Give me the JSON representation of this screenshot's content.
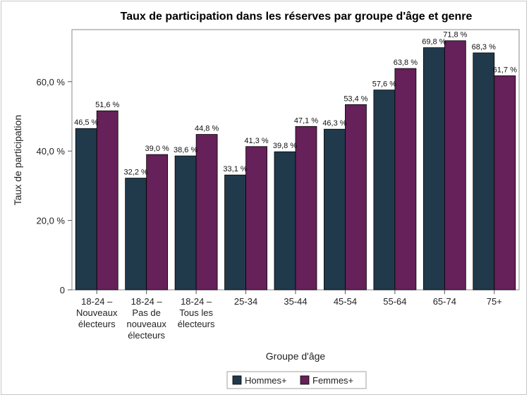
{
  "chart_data": {
    "type": "bar",
    "title": "Taux de participation dans les réserves par groupe d'âge et genre",
    "xlabel": "Groupe d'âge",
    "ylabel": "Taux de participation",
    "ylim": [
      0,
      75
    ],
    "yticks": [
      {
        "value": 0,
        "label": "0"
      },
      {
        "value": 20,
        "label": "20,0 %"
      },
      {
        "value": 40,
        "label": "40,0 %"
      },
      {
        "value": 60,
        "label": "60,0 %"
      }
    ],
    "categories": [
      [
        "18-24 –",
        "Nouveaux",
        "électeurs"
      ],
      [
        "18-24 –",
        "Pas de",
        "nouveaux",
        "électeurs"
      ],
      [
        "18-24 –",
        "Tous les",
        "électeurs"
      ],
      [
        "25-34"
      ],
      [
        "35-44"
      ],
      [
        "45-54"
      ],
      [
        "55-64"
      ],
      [
        "65-74"
      ],
      [
        "75+"
      ]
    ],
    "series": [
      {
        "name": "Hommes+",
        "color": "#203a4c",
        "values": [
          46.5,
          32.2,
          38.6,
          33.1,
          39.8,
          46.3,
          57.6,
          69.8,
          68.3
        ],
        "labels": [
          "46,5 %",
          "32,2 %",
          "38,6 %",
          "33,1 %",
          "39,8 %",
          "46,3 %",
          "57,6 %",
          "69,8 %",
          "68,3 %"
        ]
      },
      {
        "name": "Femmes+",
        "color": "#66205a",
        "values": [
          51.6,
          39.0,
          44.8,
          41.3,
          47.1,
          53.4,
          63.8,
          71.8,
          61.7
        ],
        "labels": [
          "51,6 %",
          "39,0 %",
          "44,8 %",
          "41,3 %",
          "47,1 %",
          "53,4 %",
          "63,8 %",
          "71,8 %",
          "61,7 %"
        ]
      }
    ],
    "grid": false,
    "legend_position": "bottom"
  }
}
